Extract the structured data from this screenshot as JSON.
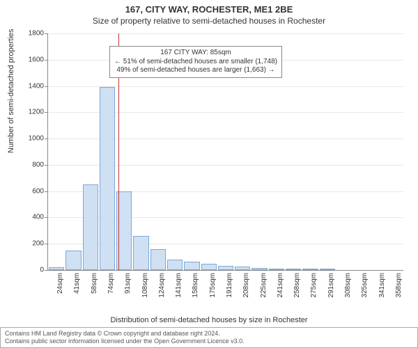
{
  "title_main": "167, CITY WAY, ROCHESTER, ME1 2BE",
  "title_sub": "Size of property relative to semi-detached houses in Rochester",
  "y_axis_title": "Number of semi-detached properties",
  "x_axis_title": "Distribution of semi-detached houses by size in Rochester",
  "chart": {
    "type": "histogram",
    "background_color": "#ffffff",
    "grid_color": "#e8e8e8",
    "axis_color": "#888888",
    "bar_fill": "#cfe0f3",
    "bar_border": "#7aa8d8",
    "ylim": [
      0,
      1800
    ],
    "ytick_step": 200,
    "categories": [
      "24sqm",
      "41sqm",
      "58sqm",
      "74sqm",
      "91sqm",
      "108sqm",
      "124sqm",
      "141sqm",
      "158sqm",
      "175sqm",
      "191sqm",
      "208sqm",
      "225sqm",
      "241sqm",
      "258sqm",
      "275sqm",
      "291sqm",
      "308sqm",
      "325sqm",
      "341sqm",
      "358sqm"
    ],
    "values": [
      20,
      150,
      650,
      1390,
      600,
      260,
      160,
      80,
      65,
      50,
      30,
      25,
      15,
      10,
      8,
      5,
      8,
      0,
      0,
      0,
      0
    ],
    "reference_line_index": 3.65,
    "reference_line_color": "#cc3333",
    "annotation": {
      "line1": "167 CITY WAY: 85sqm",
      "line2": "← 51% of semi-detached houses are smaller (1,748)",
      "line3": "49% of semi-detached houses are larger (1,663) →"
    }
  },
  "footer": {
    "line1": "Contains HM Land Registry data © Crown copyright and database right 2024.",
    "line2": "Contains public sector information licensed under the Open Government Licence v3.0."
  }
}
